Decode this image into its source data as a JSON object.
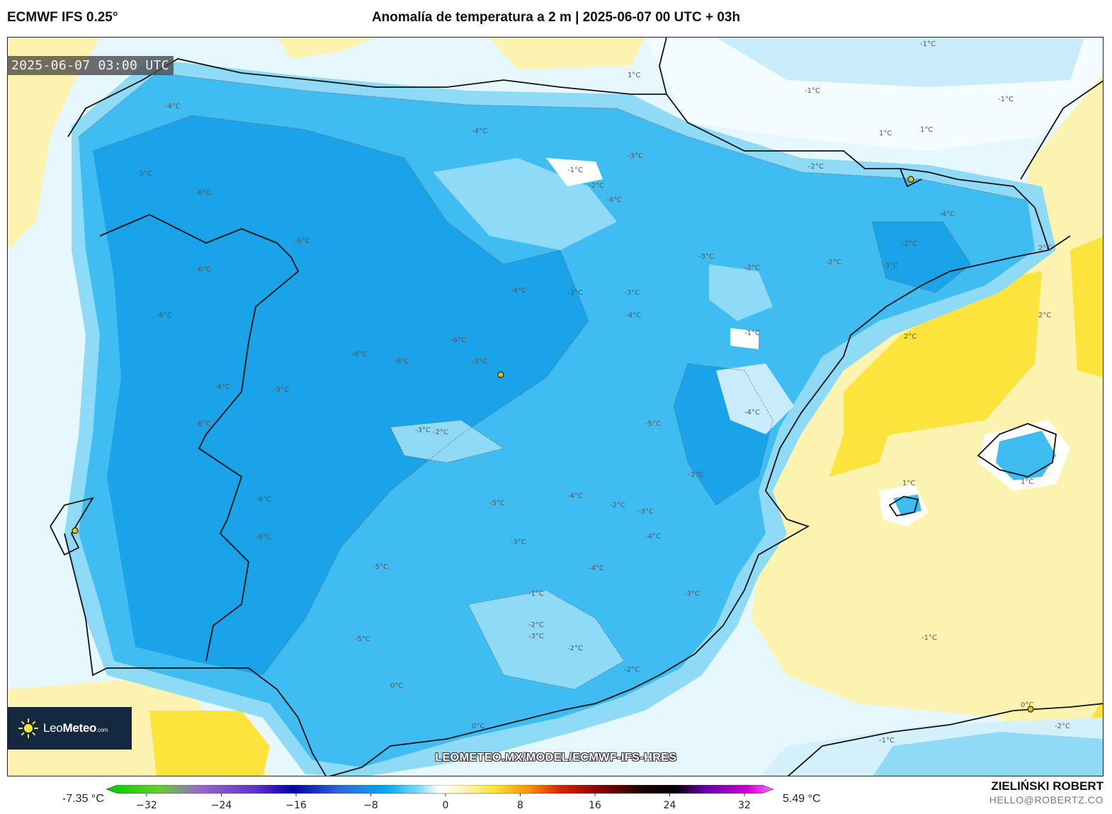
{
  "header": {
    "model": "ECMWF IFS 0.25°",
    "title": "Anomalía de temperatura a 2 m | 2025-06-07 00 UTC + 03h"
  },
  "map": {
    "timestamp": "2025-06-07 03:00 UTC",
    "watermark": "LEOMETEO.MX/MODEL/ECMWF-IFS-HRES",
    "contour_labels": [
      "-6°C",
      "-5°C",
      "-4°C",
      "-3°C",
      "-2°C",
      "-1°C",
      "0°C",
      "1°C",
      "2°C"
    ],
    "colors": {
      "deep_blue": "#1aa3e8",
      "mid_blue": "#3fbcf2",
      "light_blue": "#8fdaf7",
      "pale_blue": "#d4f1fb",
      "white": "#ffffff",
      "pale_yellow": "#fdf3b0",
      "yellow": "#fde43c"
    }
  },
  "logo": {
    "name_light": "Leo",
    "name_bold": "Meteo",
    "suffix": ".com"
  },
  "colorbar": {
    "min_label": "-7.35 °C",
    "max_label": "5.49 °C",
    "ticks": [
      "−32",
      "−24",
      "−16",
      "−8",
      "0",
      "8",
      "16",
      "24",
      "32"
    ]
  },
  "credits": {
    "author": "ZIELIŃSKI ROBERT",
    "email": "HELLO@ROBERTZ.CO"
  }
}
